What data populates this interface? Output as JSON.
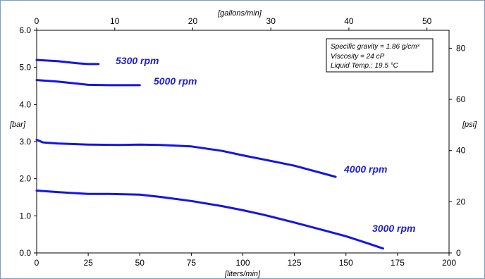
{
  "chart_data": {
    "type": "line",
    "title": "",
    "xlabel": "[liters/min]",
    "ylabel": "[bar]",
    "x2label": "[gallons/min]",
    "y2label": "[psi]",
    "xlim": [
      0,
      200
    ],
    "ylim": [
      0,
      6.0
    ],
    "x2lim": [
      0,
      52.83
    ],
    "y2lim": [
      0,
      87
    ],
    "x_ticks": [
      "0",
      "25",
      "50",
      "75",
      "100",
      "125",
      "150",
      "175",
      "200"
    ],
    "y_ticks": [
      "0.0",
      "1.0",
      "2.0",
      "3.0",
      "4.0",
      "5.0",
      "6.0"
    ],
    "x2_ticks": [
      "0",
      "10",
      "20",
      "30",
      "40",
      "50"
    ],
    "y2_ticks": [
      "0",
      "20",
      "40",
      "60",
      "80"
    ],
    "grid": false,
    "line_color": "#1414e6",
    "label_color": "#1f1fcc",
    "annotation_lines": [
      "Specific gravity = 1.86 g/cm³",
      "Viscosity = 24 cP",
      "Liquid Temp.: 19.5 °C"
    ],
    "series": [
      {
        "name": "5300 rpm",
        "x": [
          0,
          10,
          20,
          25,
          30
        ],
        "y": [
          5.2,
          5.17,
          5.11,
          5.09,
          5.09
        ]
      },
      {
        "name": "5000 rpm",
        "x": [
          0,
          10,
          20,
          25,
          35,
          50
        ],
        "y": [
          4.66,
          4.62,
          4.56,
          4.53,
          4.52,
          4.52
        ]
      },
      {
        "name": "4000 rpm",
        "x": [
          0,
          3,
          10,
          25,
          40,
          50,
          60,
          75,
          90,
          100,
          110,
          125,
          135,
          145
        ],
        "y": [
          3.05,
          2.98,
          2.95,
          2.92,
          2.91,
          2.92,
          2.91,
          2.87,
          2.75,
          2.63,
          2.52,
          2.35,
          2.2,
          2.05
        ]
      },
      {
        "name": "3000 rpm",
        "x": [
          0,
          10,
          25,
          35,
          50,
          60,
          75,
          90,
          100,
          110,
          125,
          140,
          150,
          160,
          168
        ],
        "y": [
          1.68,
          1.64,
          1.59,
          1.59,
          1.57,
          1.51,
          1.4,
          1.26,
          1.15,
          1.03,
          0.82,
          0.6,
          0.45,
          0.27,
          0.12
        ]
      }
    ]
  }
}
